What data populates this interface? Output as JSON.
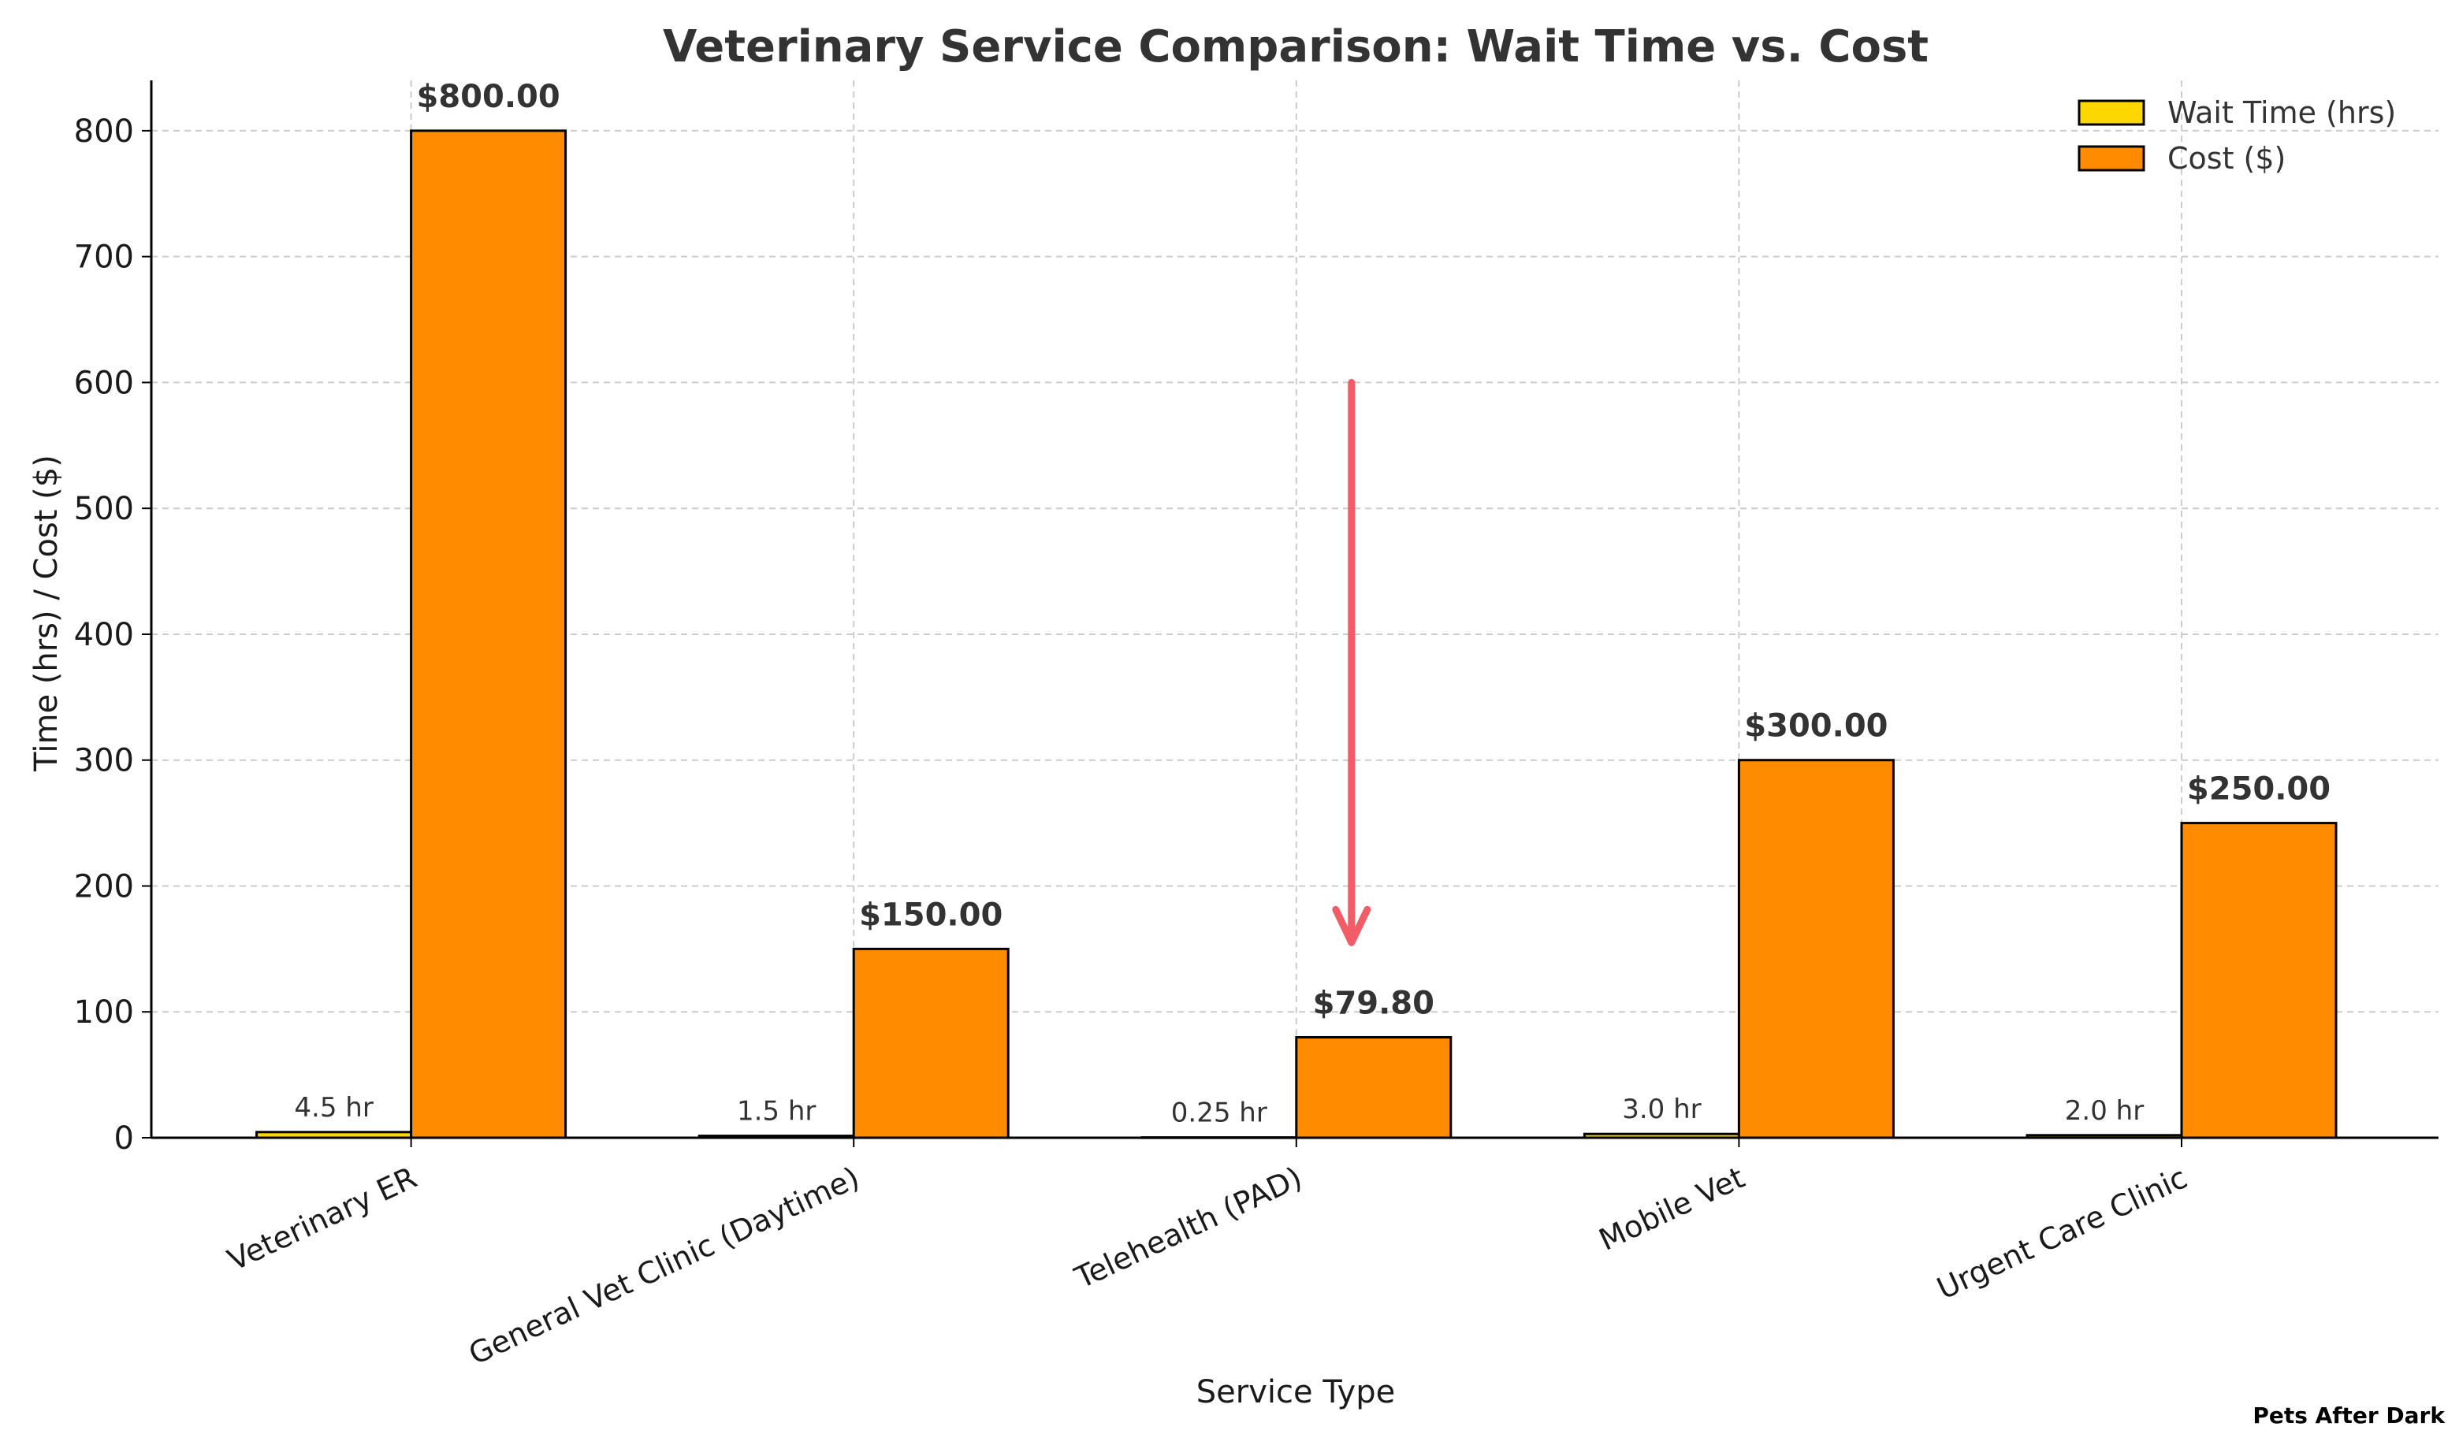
{
  "chart_data": {
    "type": "bar",
    "title": "Veterinary Service Comparison: Wait Time vs. Cost",
    "xlabel": "Service Type",
    "ylabel": "Time (hrs) / Cost ($)",
    "ylim": [
      0,
      840
    ],
    "yticks": [
      0,
      100,
      200,
      300,
      400,
      500,
      600,
      700,
      800
    ],
    "grid": true,
    "legend_position": "top-right",
    "categories": [
      "Veterinary ER",
      "General Vet Clinic (Daytime)",
      "Telehealth (PAD)",
      "Mobile Vet",
      "Urgent Care Clinic"
    ],
    "series": [
      {
        "name": "Wait Time (hrs)",
        "color": "#FFD700",
        "values": [
          4.5,
          1.5,
          0.25,
          3.0,
          2.0
        ],
        "labels": [
          "4.5 hr",
          "1.5 hr",
          "0.25 hr",
          "3.0 hr",
          "2.0 hr"
        ]
      },
      {
        "name": "Cost ($)",
        "color": "#FF8C00",
        "values": [
          800,
          150,
          79.8,
          300,
          250
        ],
        "labels": [
          "$800.00",
          "$150.00",
          "$79.80",
          "$300.00",
          "$250.00"
        ]
      }
    ],
    "annotation": {
      "type": "arrow",
      "color": "#F25C66",
      "category": "Telehealth (PAD)",
      "from_y": 600,
      "to_y": 155
    }
  },
  "watermark": "Pets After Dark"
}
